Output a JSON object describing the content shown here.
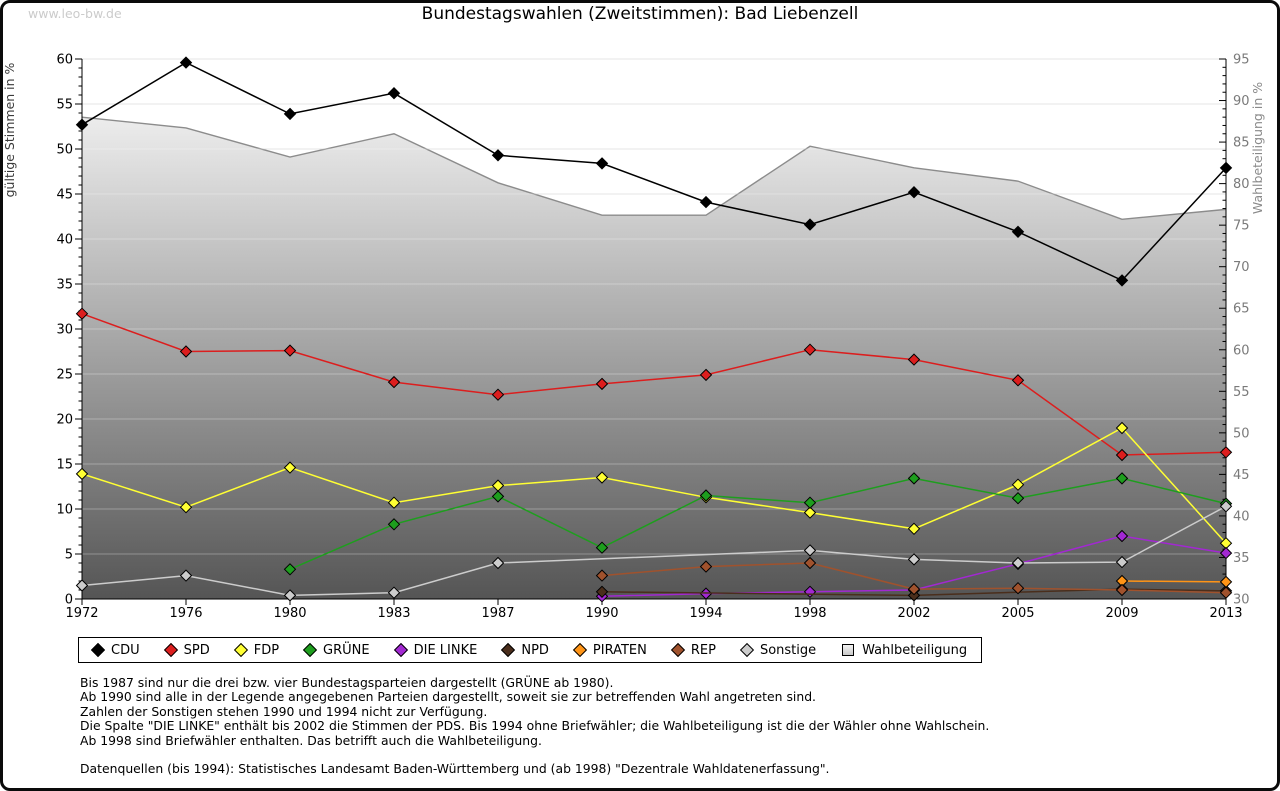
{
  "watermark": "www.leo-bw.de",
  "title": "Bundestagswahlen (Zweitstimmen): Bad Liebenzell",
  "chart_data": {
    "type": "line",
    "title": "Bundestagswahlen (Zweitstimmen): Bad Liebenzell",
    "categories": [
      "1972",
      "1976",
      "1980",
      "1983",
      "1987",
      "1990",
      "1994",
      "1998",
      "2002",
      "2005",
      "2009",
      "2013"
    ],
    "left_axis": {
      "label": "gültige Stimmen in %",
      "min": 0,
      "max": 60,
      "tick_step": 5,
      "minor_step": 1,
      "grid": true
    },
    "right_axis": {
      "label": "Wahlbeteiligung in %",
      "min": 30,
      "max": 95,
      "tick_step": 5,
      "minor_step": 1
    },
    "legend_position": "bottom",
    "series": [
      {
        "name": "CDU",
        "color": "#000000",
        "axis": "left",
        "style": "line",
        "values": [
          52.7,
          59.6,
          53.9,
          56.2,
          49.3,
          48.4,
          44.1,
          41.6,
          45.2,
          40.8,
          35.4,
          47.9
        ]
      },
      {
        "name": "SPD",
        "color": "#dc1e1e",
        "axis": "left",
        "style": "line",
        "values": [
          31.7,
          27.5,
          27.6,
          24.1,
          22.7,
          23.9,
          24.9,
          27.7,
          26.6,
          24.3,
          16.0,
          16.3
        ]
      },
      {
        "name": "FDP",
        "color": "#ffff33",
        "axis": "left",
        "style": "line",
        "values": [
          13.9,
          10.2,
          14.6,
          10.7,
          12.6,
          13.5,
          11.3,
          9.6,
          7.8,
          12.7,
          19.0,
          6.2
        ]
      },
      {
        "name": "GRÜNE",
        "color": "#1e9e1e",
        "axis": "left",
        "style": "line",
        "values": [
          null,
          null,
          3.3,
          8.3,
          11.4,
          5.7,
          11.5,
          10.7,
          13.4,
          11.2,
          13.4,
          10.6
        ]
      },
      {
        "name": "DIE LINKE",
        "color": "#a228d2",
        "axis": "left",
        "style": "line",
        "values": [
          null,
          null,
          null,
          null,
          null,
          0.3,
          0.6,
          0.8,
          1.0,
          3.9,
          7.0,
          5.1
        ]
      },
      {
        "name": "NPD",
        "color": "#4a2e1c",
        "axis": "left",
        "style": "line",
        "values": [
          null,
          null,
          null,
          null,
          null,
          0.8,
          null,
          null,
          0.4,
          null,
          1.1,
          0.9
        ]
      },
      {
        "name": "PIRATEN",
        "color": "#ff9416",
        "axis": "left",
        "style": "line",
        "values": [
          null,
          null,
          null,
          null,
          null,
          null,
          null,
          null,
          null,
          null,
          2.0,
          1.9
        ]
      },
      {
        "name": "REP",
        "color": "#a0522d",
        "axis": "left",
        "style": "line",
        "values": [
          null,
          null,
          null,
          null,
          null,
          2.6,
          3.6,
          4.0,
          1.1,
          1.2,
          1.0,
          0.7
        ]
      },
      {
        "name": "Sonstige",
        "color": "#cccccc",
        "axis": "left",
        "style": "line",
        "values": [
          1.5,
          2.6,
          0.4,
          0.7,
          4.0,
          null,
          null,
          5.4,
          4.4,
          4.0,
          4.1,
          10.3
        ]
      },
      {
        "name": "Wahlbeteiligung",
        "color": "#8c8c8c",
        "axis": "right",
        "style": "area",
        "values": [
          88.0,
          86.7,
          83.2,
          86.0,
          80.1,
          76.2,
          76.2,
          84.5,
          81.9,
          80.3,
          75.7,
          76.9
        ]
      }
    ]
  },
  "notes": [
    "Bis 1987 sind nur die drei bzw. vier Bundestagsparteien dargestellt (GRÜNE ab 1980).",
    "Ab 1990 sind alle in der Legende angegebenen Parteien dargestellt, soweit sie zur betreffenden Wahl angetreten sind.",
    "Zahlen der Sonstigen stehen 1990 und 1994 nicht zur Verfügung.",
    "Die Spalte \"DIE LINKE\" enthält bis 2002 die Stimmen der PDS. Bis 1994 ohne Briefwähler; die Wahlbeteiligung ist die der Wähler ohne Wahlschein.",
    "Ab 1998 sind Briefwähler enthalten. Das betrifft auch die Wahlbeteiligung."
  ],
  "datasource": "Datenquellen (bis 1994): Statistisches Landesamt Baden-Württemberg und (ab 1998) \"Dezentrale Wahldatenerfassung\"."
}
